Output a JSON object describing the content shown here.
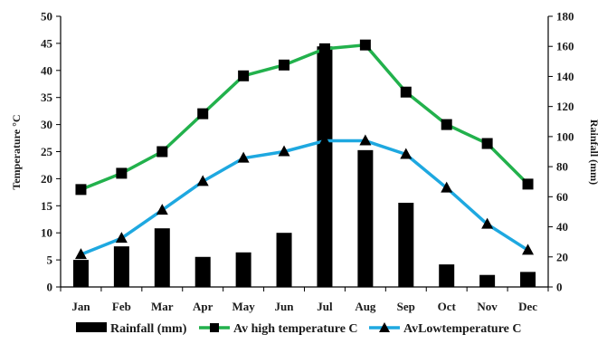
{
  "chart_data": {
    "type": "bar",
    "categories": [
      "Jan",
      "Feb",
      "Mar",
      "Apr",
      "May",
      "Jun",
      "Jul",
      "Aug",
      "Sep",
      "Oct",
      "Nov",
      "Dec"
    ],
    "series": [
      {
        "name": "Rainfall (mm)",
        "kind": "bar",
        "axis": "right",
        "color": "#000000",
        "values": [
          18,
          27,
          39,
          20,
          23,
          36,
          160,
          91,
          56,
          15,
          8,
          10
        ]
      },
      {
        "name": "Av high temperature C",
        "kind": "line",
        "axis": "left",
        "color": "#22b14c",
        "marker": "square",
        "values": [
          18,
          21,
          25,
          32,
          39,
          41,
          44,
          44.7,
          36,
          30,
          26.5,
          19
        ]
      },
      {
        "name": "AvLowtemperature C",
        "kind": "line",
        "axis": "left",
        "color": "#1ea8e0",
        "marker": "triangle",
        "values": [
          6,
          9,
          14.2,
          19.5,
          23.8,
          25,
          27,
          27,
          24.5,
          18.3,
          11.6,
          6.8
        ]
      }
    ],
    "ylabel": "Temperature °C",
    "ylabel_right": "Rainfall (mm)",
    "ylim": [
      0,
      50
    ],
    "yticks": [
      "0",
      "5",
      "10",
      "15",
      "20",
      "25",
      "30",
      "35",
      "40",
      "45",
      "50"
    ],
    "ylim_right": [
      0,
      180
    ],
    "yticks_right": [
      "0",
      "20",
      "40",
      "60",
      "80",
      "100",
      "120",
      "140",
      "160",
      "180"
    ],
    "grid": false,
    "legend_position": "bottom"
  }
}
